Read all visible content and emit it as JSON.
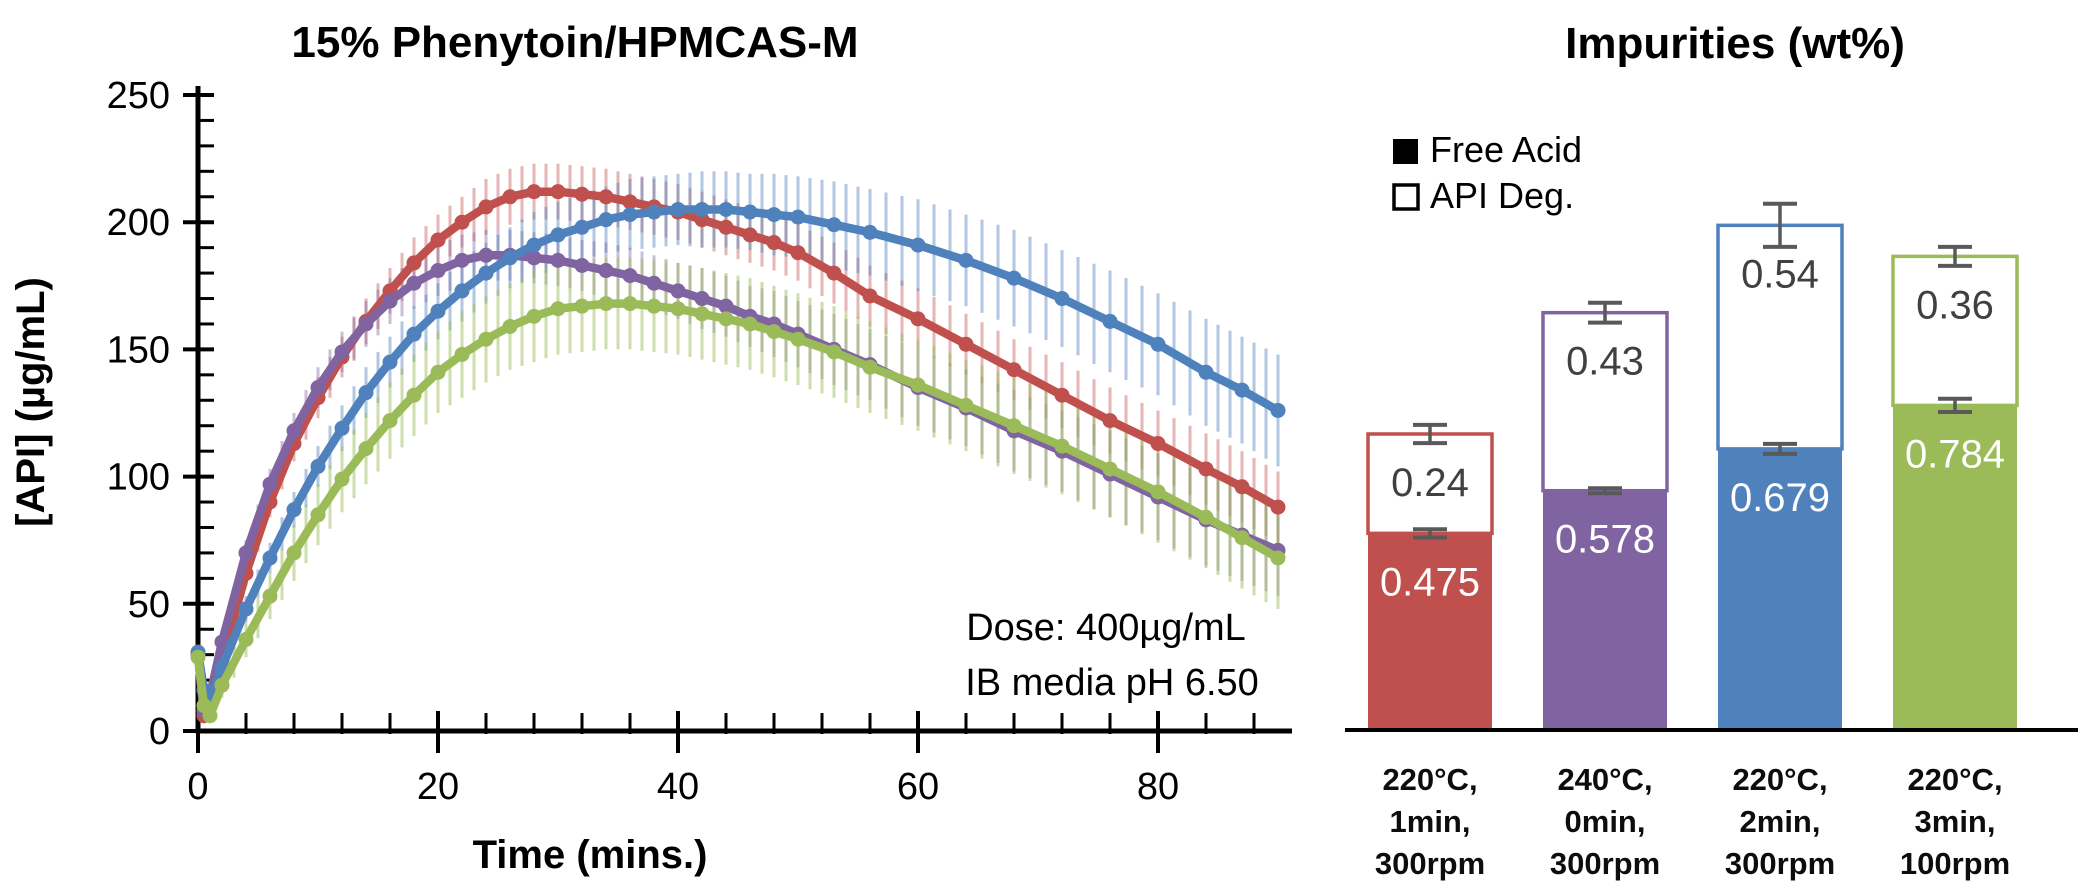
{
  "page": {
    "background": "#ffffff"
  },
  "chart_data": [
    {
      "id": "dissolution-profile",
      "type": "line",
      "title": "15% Phenytoin/HPMCAS-M",
      "grid": false,
      "legend_position": "none",
      "error_bars": true,
      "x_axis": {
        "label": "Time (mins.)",
        "min": 0,
        "max": 90.6,
        "major_ticks": [
          0,
          20,
          40,
          60,
          80
        ],
        "tick_labels": [
          "0",
          "20",
          "40",
          "60",
          "80"
        ],
        "minor_step": 4
      },
      "y_axis": {
        "label": "[API] (µg/mL)",
        "min": 0,
        "max": 250,
        "major_ticks": [
          0,
          50,
          100,
          150,
          200,
          250
        ],
        "tick_labels": [
          "0",
          "50",
          "100",
          "150",
          "200",
          "250"
        ],
        "minor_step": 10
      },
      "annotation": {
        "line1": "Dose: 400µg/mL",
        "line2": "IB media pH 6.50"
      },
      "series": [
        {
          "name": "220°C, 1min, 300rpm",
          "color": "#C0504D",
          "color_light": "rgba(192,80,77,0.42)",
          "t": [
            0,
            0.5,
            1,
            2,
            4,
            6,
            8,
            10,
            12,
            14,
            16,
            18,
            20,
            22,
            24,
            26,
            28,
            30,
            32,
            34,
            36,
            38,
            40,
            42,
            44,
            46,
            48,
            50,
            53,
            56,
            60,
            64,
            68,
            72,
            76,
            80,
            84,
            87,
            90
          ],
          "y": [
            30,
            6,
            10,
            28,
            62,
            90,
            113,
            131,
            147,
            161,
            173,
            184,
            193,
            200,
            206,
            210,
            212,
            212,
            211,
            210,
            208,
            206,
            204,
            201,
            198,
            195,
            192,
            188,
            180,
            171,
            162,
            152,
            142,
            132,
            122,
            113,
            103,
            96,
            88
          ],
          "e": [
            3,
            3,
            3,
            4,
            5,
            6,
            7,
            8,
            8,
            9,
            9,
            10,
            10,
            10,
            11,
            11,
            11,
            11,
            11,
            11,
            11,
            11,
            11,
            11,
            11,
            11,
            11,
            11,
            12,
            12,
            12,
            12,
            12,
            13,
            13,
            13,
            14,
            14,
            14
          ]
        },
        {
          "name": "240°C, 0min, 300rpm",
          "color": "#8064A2",
          "color_light": "rgba(128,100,162,0.42)",
          "t": [
            0,
            0.5,
            1,
            2,
            4,
            6,
            8,
            10,
            12,
            14,
            16,
            18,
            20,
            22,
            24,
            26,
            28,
            30,
            32,
            34,
            36,
            38,
            40,
            42,
            44,
            46,
            48,
            50,
            53,
            56,
            60,
            64,
            68,
            72,
            76,
            80,
            84,
            87,
            90
          ],
          "y": [
            30,
            8,
            14,
            35,
            70,
            97,
            118,
            135,
            149,
            160,
            169,
            176,
            181,
            185,
            187,
            187,
            186,
            185,
            183,
            181,
            179,
            176,
            173,
            170,
            167,
            163,
            160,
            156,
            150,
            144,
            135,
            127,
            118,
            110,
            101,
            92,
            83,
            77,
            71
          ],
          "e": [
            3,
            3,
            3,
            4,
            5,
            6,
            7,
            8,
            8,
            9,
            9,
            10,
            10,
            10,
            10,
            10,
            10,
            10,
            10,
            11,
            11,
            11,
            11,
            12,
            12,
            12,
            13,
            13,
            14,
            14,
            15,
            15,
            16,
            16,
            17,
            17,
            18,
            18,
            18
          ]
        },
        {
          "name": "220°C, 2min, 300rpm",
          "color": "#4F81BD",
          "color_light": "rgba(79,129,189,0.45)",
          "t": [
            0,
            0.5,
            1,
            2,
            4,
            6,
            8,
            10,
            12,
            14,
            16,
            18,
            20,
            22,
            24,
            26,
            28,
            30,
            32,
            34,
            36,
            38,
            40,
            42,
            44,
            46,
            48,
            50,
            53,
            56,
            60,
            64,
            68,
            72,
            76,
            80,
            84,
            87,
            90
          ],
          "y": [
            31,
            16,
            11,
            25,
            48,
            68,
            87,
            104,
            119,
            133,
            145,
            156,
            165,
            173,
            180,
            186,
            191,
            195,
            198,
            201,
            203,
            204,
            205,
            205,
            205,
            204,
            203,
            202,
            199,
            196,
            191,
            185,
            178,
            170,
            161,
            152,
            141,
            134,
            126
          ],
          "e": [
            3,
            3,
            3,
            4,
            5,
            6,
            7,
            8,
            9,
            10,
            10,
            11,
            11,
            12,
            12,
            12,
            13,
            13,
            13,
            13,
            14,
            14,
            14,
            15,
            15,
            15,
            16,
            16,
            17,
            17,
            18,
            18,
            19,
            19,
            20,
            20,
            21,
            21,
            22
          ]
        },
        {
          "name": "220°C, 3min, 100rpm",
          "color": "#9BBB59",
          "color_light": "rgba(155,187,89,0.5)",
          "t": [
            0,
            0.5,
            1,
            2,
            4,
            6,
            8,
            10,
            12,
            14,
            16,
            18,
            20,
            22,
            24,
            26,
            28,
            30,
            32,
            34,
            36,
            38,
            40,
            42,
            44,
            46,
            48,
            50,
            53,
            56,
            60,
            64,
            68,
            72,
            76,
            80,
            84,
            87,
            90
          ],
          "y": [
            29,
            10,
            6,
            18,
            36,
            53,
            70,
            85,
            99,
            111,
            122,
            132,
            141,
            148,
            154,
            159,
            163,
            166,
            167,
            168,
            168,
            167,
            166,
            164,
            162,
            160,
            157,
            154,
            149,
            143,
            136,
            128,
            120,
            112,
            103,
            94,
            84,
            76,
            68
          ],
          "e": [
            3,
            3,
            3,
            5,
            7,
            9,
            11,
            12,
            13,
            14,
            15,
            16,
            16,
            17,
            17,
            17,
            18,
            18,
            18,
            18,
            18,
            18,
            18,
            18,
            18,
            18,
            18,
            18,
            18,
            18,
            18,
            18,
            19,
            19,
            19,
            20,
            20,
            20,
            20
          ]
        }
      ]
    },
    {
      "id": "impurities",
      "type": "bar",
      "stacked": true,
      "title": "Impurities (wt%)",
      "grid": false,
      "legend": {
        "position": "top-left",
        "items": [
          {
            "label": "Free Acid",
            "swatch": "filled-black"
          },
          {
            "label": "API Deg.",
            "swatch": "open-white"
          }
        ]
      },
      "error_bar_color": "#595959",
      "series_names": [
        "Free Acid",
        "API Deg."
      ],
      "bars": [
        {
          "category": "220°C, 1min, 300rpm",
          "category_lines": [
            "220°C,",
            "1min,",
            "300rpm"
          ],
          "color": "#C0504D",
          "free_acid": 0.475,
          "free_acid_label": "0.475",
          "free_acid_err": 0.01,
          "api_deg": 0.24,
          "api_deg_label": "0.24",
          "api_deg_err": 0.022
        },
        {
          "category": "240°C, 0min, 300rpm",
          "category_lines": [
            "240°C,",
            "0min,",
            "300rpm"
          ],
          "color": "#8064A2",
          "free_acid": 0.578,
          "free_acid_label": "0.578",
          "free_acid_err": 0.006,
          "api_deg": 0.43,
          "api_deg_label": "0.43",
          "api_deg_err": 0.024
        },
        {
          "category": "220°C, 2min, 300rpm",
          "category_lines": [
            "220°C,",
            "2min,",
            "300rpm"
          ],
          "color": "#4F81BD",
          "free_acid": 0.679,
          "free_acid_label": "0.679",
          "free_acid_err": 0.012,
          "api_deg": 0.54,
          "api_deg_label": "0.54",
          "api_deg_err": 0.052
        },
        {
          "category": "220°C, 3min, 100rpm",
          "category_lines": [
            "220°C,",
            "3min,",
            "100rpm"
          ],
          "color": "#9BBB59",
          "free_acid": 0.784,
          "free_acid_label": "0.784",
          "free_acid_err": 0.016,
          "api_deg": 0.36,
          "api_deg_label": "0.36",
          "api_deg_err": 0.023
        }
      ]
    }
  ]
}
